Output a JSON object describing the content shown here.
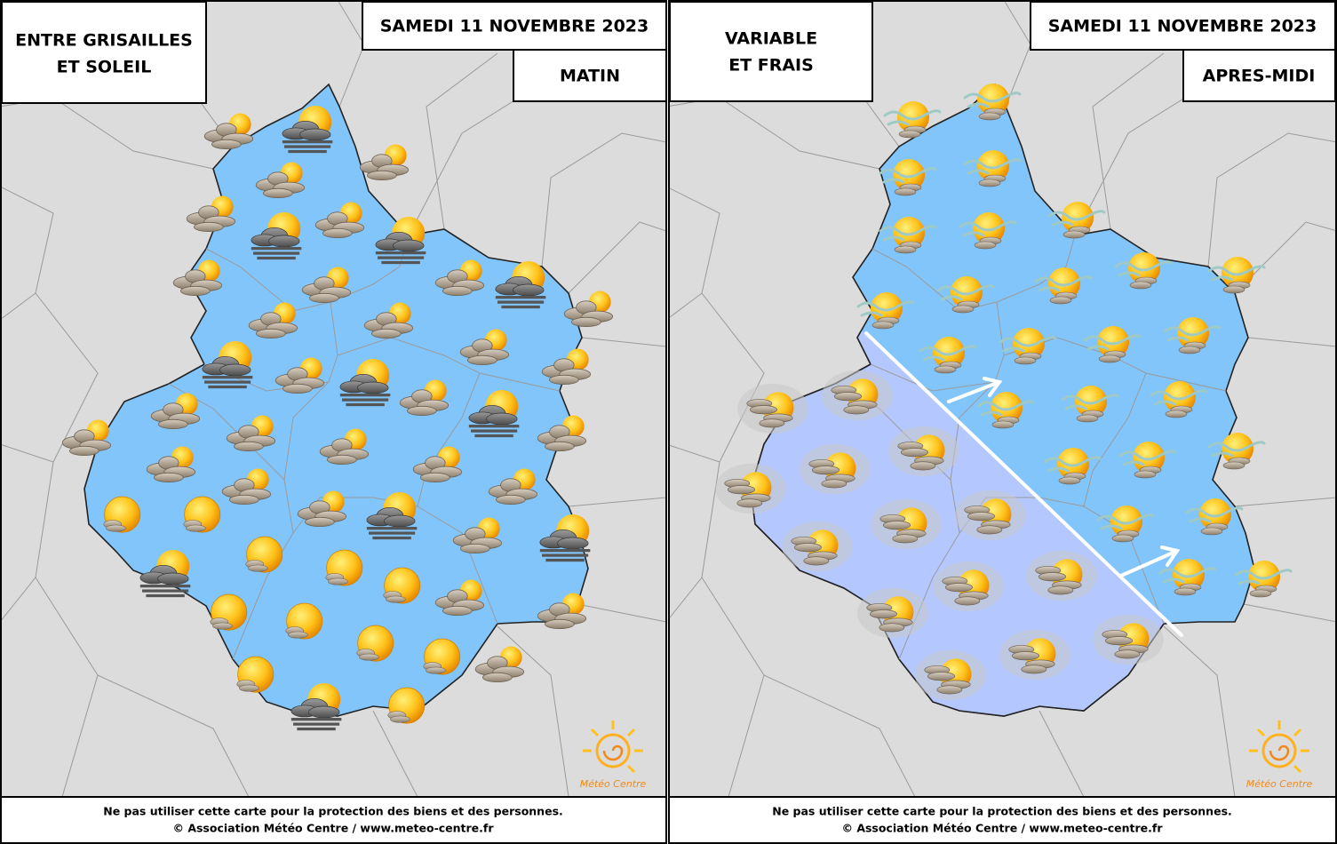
{
  "panels": [
    {
      "headline": [
        "ENTRE GRISAILLES",
        "ET SOLEIL"
      ],
      "date": "SAMEDI 11 NOVEMBRE 2023",
      "period": "MATIN",
      "footer": [
        "Ne pas utiliser cette carte pour la protection des biens et des personnes.",
        "© Association Météo Centre / www.meteo-centre.fr"
      ],
      "logo": "Météo Centre"
    },
    {
      "headline": [
        "VARIABLE",
        "ET FRAIS"
      ],
      "date": "SAMEDI 11 NOVEMBRE 2023",
      "period": "APRES-MIDI",
      "footer": [
        "Ne pas utiliser cette carte pour la protection des biens et des personnes.",
        "© Association Météo Centre / www.meteo-centre.fr"
      ],
      "logo": "Météo Centre"
    }
  ]
}
